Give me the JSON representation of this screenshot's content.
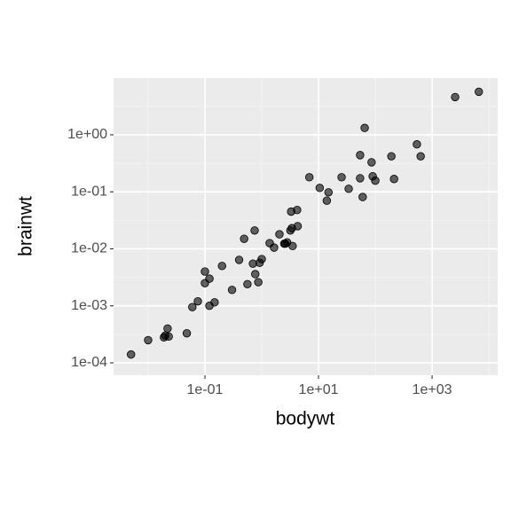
{
  "chart_data": {
    "type": "scatter",
    "x_label": "bodywt",
    "y_label": "brainwt",
    "log_x": true,
    "log_y": true,
    "grid": true,
    "color": "#000000",
    "xlim": [
      0.00246,
      14300
    ],
    "ylim": [
      6.05e-05,
      9.9
    ],
    "xticks": [
      {
        "value": 0.1,
        "label": "1e-01"
      },
      {
        "value": 10,
        "label": "1e+01"
      },
      {
        "value": 1000,
        "label": "1e+03"
      }
    ],
    "yticks": [
      {
        "value": 0.0001,
        "label": "1e-04"
      },
      {
        "value": 0.001,
        "label": "1e-03"
      },
      {
        "value": 0.01,
        "label": "1e-02"
      },
      {
        "value": 0.1,
        "label": "1e-01"
      },
      {
        "value": 1,
        "label": "1e+00"
      }
    ],
    "x": [
      0.005,
      0.01,
      0.019,
      0.02,
      0.022,
      0.023,
      0.048,
      0.06,
      0.075,
      0.1,
      0.1,
      0.12,
      0.12,
      0.148,
      0.2,
      0.3,
      0.4,
      0.49,
      0.56,
      0.7,
      0.75,
      0.77,
      0.87,
      0.92,
      1.0,
      1.38,
      1.65,
      2.05,
      2.5,
      2.6,
      2.8,
      3.2,
      3.3,
      3.4,
      3.5,
      4.2,
      4.3,
      6.9,
      10.5,
      14,
      15,
      25.5,
      34,
      54,
      54,
      60,
      65,
      86,
      90,
      100,
      192,
      214,
      540,
      630,
      2547,
      6654
    ],
    "values": [
      0.00014,
      0.00025,
      0.00028,
      0.0003,
      0.0004,
      0.00029,
      0.00033,
      0.00095,
      0.0012,
      0.004,
      0.0025,
      0.003,
      0.001,
      0.00115,
      0.005,
      0.0019,
      0.0064,
      0.015,
      0.0024,
      0.0055,
      0.021,
      0.0036,
      0.0026,
      0.0057,
      0.0066,
      0.0126,
      0.0105,
      0.018,
      0.0123,
      0.0123,
      0.013,
      0.021,
      0.045,
      0.023,
      0.0112,
      0.048,
      0.025,
      0.18,
      0.117,
      0.07,
      0.098,
      0.18,
      0.113,
      0.44,
      0.173,
      0.081,
      1.32,
      0.33,
      0.187,
      0.157,
      0.42,
      0.168,
      0.68,
      0.42,
      4.6,
      5.7
    ]
  }
}
